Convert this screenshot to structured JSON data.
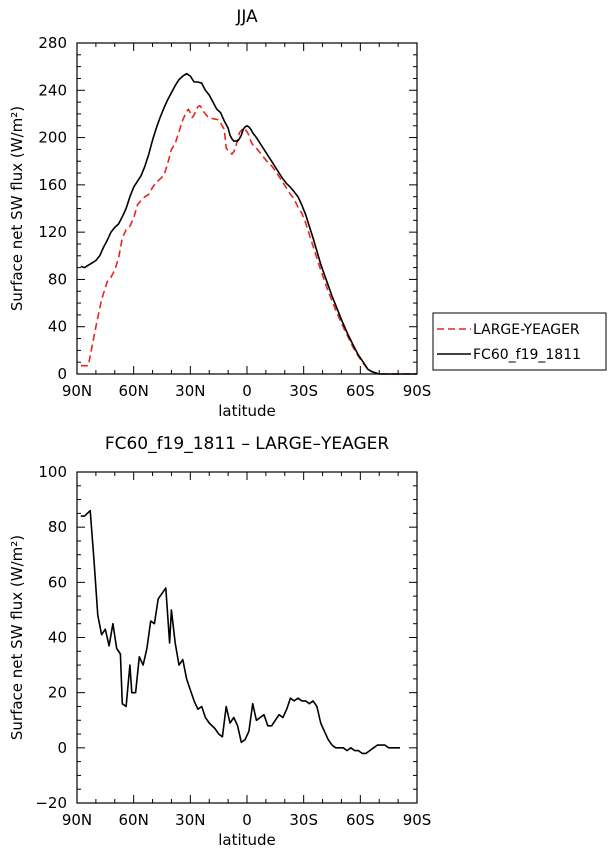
{
  "chart_data": [
    {
      "type": "line",
      "title": "JJA",
      "xlabel": "latitude",
      "ylabel": "Surface net SW flux (W/m²)",
      "xlim": [
        90,
        -90
      ],
      "ylim": [
        0,
        280
      ],
      "xticks": [
        90,
        60,
        30,
        0,
        -30,
        -60,
        -90
      ],
      "xtick_labels": [
        "90N",
        "60N",
        "30N",
        "0",
        "30S",
        "60S",
        "90S"
      ],
      "yticks": [
        0,
        40,
        80,
        120,
        160,
        200,
        240,
        280
      ],
      "grid": false,
      "legend_position": "outside-right",
      "series": [
        {
          "name": "LARGE-YEAGER",
          "color": "#e8251f",
          "dash": "dashed",
          "points": [
            [
              88,
              7
            ],
            [
              84,
              7
            ],
            [
              80,
              40
            ],
            [
              77,
              63
            ],
            [
              74,
              78
            ],
            [
              72,
              82
            ],
            [
              70,
              88
            ],
            [
              68,
              98
            ],
            [
              66,
              115
            ],
            [
              64,
              122
            ],
            [
              62,
              125
            ],
            [
              60,
              132
            ],
            [
              58,
              143
            ],
            [
              56,
              147
            ],
            [
              54,
              150
            ],
            [
              52,
              152
            ],
            [
              50,
              158
            ],
            [
              48,
              162
            ],
            [
              46,
              165
            ],
            [
              44,
              168
            ],
            [
              42,
              178
            ],
            [
              40,
              190
            ],
            [
              38,
              195
            ],
            [
              36,
              205
            ],
            [
              34,
              215
            ],
            [
              32,
              222
            ],
            [
              31,
              224
            ],
            [
              30,
              221
            ],
            [
              29,
              217
            ],
            [
              28,
              219
            ],
            [
              27,
              223
            ],
            [
              26,
              226
            ],
            [
              25,
              227
            ],
            [
              24,
              225
            ],
            [
              23,
              222
            ],
            [
              22,
              220
            ],
            [
              21,
              218
            ],
            [
              20,
              217
            ],
            [
              18,
              216
            ],
            [
              15,
              215
            ],
            [
              12,
              207
            ],
            [
              11,
              191
            ],
            [
              10,
              189
            ],
            [
              9,
              188
            ],
            [
              8,
              186
            ],
            [
              7,
              188
            ],
            [
              6,
              192
            ],
            [
              5,
              198
            ],
            [
              4,
              204
            ],
            [
              3,
              206
            ],
            [
              2,
              208
            ],
            [
              1,
              207
            ],
            [
              0,
              205
            ],
            [
              -1,
              202
            ],
            [
              -2,
              197
            ],
            [
              -3,
              194
            ],
            [
              -5,
              191
            ],
            [
              -7,
              187
            ],
            [
              -9,
              183
            ],
            [
              -11,
              179
            ],
            [
              -13,
              176
            ],
            [
              -15,
              172
            ],
            [
              -17,
              167
            ],
            [
              -19,
              162
            ],
            [
              -21,
              157
            ],
            [
              -23,
              152
            ],
            [
              -25,
              148
            ],
            [
              -27,
              141
            ],
            [
              -29,
              136
            ],
            [
              -31,
              128
            ],
            [
              -33,
              118
            ],
            [
              -35,
              108
            ],
            [
              -37,
              98
            ],
            [
              -39,
              88
            ],
            [
              -41,
              79
            ],
            [
              -43,
              70
            ],
            [
              -45,
              62
            ],
            [
              -47,
              54
            ],
            [
              -50,
              43
            ],
            [
              -53,
              33
            ],
            [
              -56,
              23
            ],
            [
              -59,
              15
            ],
            [
              -62,
              8
            ],
            [
              -64,
              4
            ],
            [
              -66,
              2
            ],
            [
              -68,
              1
            ],
            [
              -70,
              0
            ],
            [
              -75,
              0
            ],
            [
              -85,
              0
            ],
            [
              -90,
              0
            ]
          ]
        },
        {
          "name": "FC60_f19_1811",
          "color": "#000000",
          "dash": "solid",
          "points": [
            [
              88,
              91
            ],
            [
              86,
              90
            ],
            [
              84,
              92
            ],
            [
              82,
              94
            ],
            [
              80,
              96
            ],
            [
              78,
              100
            ],
            [
              76,
              107
            ],
            [
              74,
              113
            ],
            [
              72,
              120
            ],
            [
              70,
              124
            ],
            [
              68,
              127
            ],
            [
              66,
              133
            ],
            [
              64,
              140
            ],
            [
              62,
              150
            ],
            [
              60,
              158
            ],
            [
              58,
              163
            ],
            [
              56,
              168
            ],
            [
              54,
              176
            ],
            [
              52,
              186
            ],
            [
              50,
              198
            ],
            [
              48,
              208
            ],
            [
              46,
              217
            ],
            [
              44,
              225
            ],
            [
              42,
              232
            ],
            [
              40,
              238
            ],
            [
              38,
              244
            ],
            [
              36,
              249
            ],
            [
              34,
              252
            ],
            [
              32,
              254
            ],
            [
              30,
              252
            ],
            [
              28,
              247
            ],
            [
              26,
              247
            ],
            [
              24,
              246
            ],
            [
              22,
              240
            ],
            [
              20,
              236
            ],
            [
              18,
              230
            ],
            [
              16,
              224
            ],
            [
              14,
              221
            ],
            [
              12,
              214
            ],
            [
              10,
              208
            ],
            [
              9,
              202
            ],
            [
              8,
              199
            ],
            [
              7,
              197
            ],
            [
              6,
              197
            ],
            [
              5,
              197
            ],
            [
              4,
              199
            ],
            [
              3,
              202
            ],
            [
              2,
              207
            ],
            [
              1,
              209
            ],
            [
              0,
              210
            ],
            [
              -1,
              209
            ],
            [
              -2,
              207
            ],
            [
              -3,
              204
            ],
            [
              -5,
              200
            ],
            [
              -7,
              195
            ],
            [
              -9,
              190
            ],
            [
              -11,
              185
            ],
            [
              -13,
              180
            ],
            [
              -15,
              175
            ],
            [
              -17,
              170
            ],
            [
              -19,
              165
            ],
            [
              -21,
              161
            ],
            [
              -23,
              158
            ],
            [
              -25,
              154
            ],
            [
              -27,
              150
            ],
            [
              -29,
              143
            ],
            [
              -31,
              135
            ],
            [
              -33,
              125
            ],
            [
              -35,
              115
            ],
            [
              -37,
              104
            ],
            [
              -39,
              93
            ],
            [
              -41,
              84
            ],
            [
              -43,
              75
            ],
            [
              -45,
              66
            ],
            [
              -47,
              58
            ],
            [
              -50,
              46
            ],
            [
              -53,
              35
            ],
            [
              -56,
              25
            ],
            [
              -59,
              16
            ],
            [
              -62,
              9
            ],
            [
              -64,
              4
            ],
            [
              -66,
              2
            ],
            [
              -68,
              1
            ],
            [
              -70,
              0
            ],
            [
              -75,
              0
            ],
            [
              -85,
              0
            ],
            [
              -90,
              0
            ]
          ]
        }
      ]
    },
    {
      "type": "line",
      "title": "FC60_f19_1811 – LARGE–YEAGER",
      "xlabel": "latitude",
      "ylabel": "Surface net SW flux (W/m²)",
      "xlim": [
        90,
        -90
      ],
      "ylim": [
        -20,
        100
      ],
      "xticks": [
        90,
        60,
        30,
        0,
        -30,
        -60,
        -90
      ],
      "xtick_labels": [
        "90N",
        "60N",
        "30N",
        "0",
        "30S",
        "60S",
        "90S"
      ],
      "yticks": [
        -20,
        0,
        20,
        40,
        60,
        80,
        100
      ],
      "ytick_labels": [
        "−20",
        "0",
        "20",
        "40",
        "60",
        "80",
        "100"
      ],
      "grid": false,
      "series": [
        {
          "color": "#000000",
          "dash": "solid",
          "points": [
            [
              88,
              84
            ],
            [
              86,
              84
            ],
            [
              83,
              86
            ],
            [
              81,
              68
            ],
            [
              79,
              48
            ],
            [
              77,
              41
            ],
            [
              75,
              43
            ],
            [
              73,
              37
            ],
            [
              71,
              45
            ],
            [
              69,
              36
            ],
            [
              67,
              34
            ],
            [
              66,
              16
            ],
            [
              64,
              15
            ],
            [
              62,
              30
            ],
            [
              61,
              20
            ],
            [
              59,
              20
            ],
            [
              57,
              33
            ],
            [
              55,
              30
            ],
            [
              53,
              36
            ],
            [
              51,
              46
            ],
            [
              49,
              45
            ],
            [
              47,
              54
            ],
            [
              45,
              56
            ],
            [
              43,
              58
            ],
            [
              41,
              38
            ],
            [
              40,
              50
            ],
            [
              38,
              38
            ],
            [
              36,
              30
            ],
            [
              34,
              32
            ],
            [
              32,
              25
            ],
            [
              30,
              21
            ],
            [
              28,
              17
            ],
            [
              26,
              14
            ],
            [
              24,
              15
            ],
            [
              22,
              11
            ],
            [
              20,
              9
            ],
            [
              17,
              7
            ],
            [
              15,
              5
            ],
            [
              13,
              4
            ],
            [
              11,
              15
            ],
            [
              9,
              9
            ],
            [
              7,
              11
            ],
            [
              5,
              8
            ],
            [
              3,
              2
            ],
            [
              1,
              3
            ],
            [
              -1,
              6
            ],
            [
              -3,
              16
            ],
            [
              -5,
              10
            ],
            [
              -7,
              11
            ],
            [
              -9,
              12
            ],
            [
              -11,
              8
            ],
            [
              -13,
              8
            ],
            [
              -15,
              10
            ],
            [
              -17,
              12
            ],
            [
              -19,
              11
            ],
            [
              -21,
              14
            ],
            [
              -23,
              18
            ],
            [
              -25,
              17
            ],
            [
              -27,
              18
            ],
            [
              -29,
              17
            ],
            [
              -31,
              17
            ],
            [
              -33,
              16
            ],
            [
              -35,
              17
            ],
            [
              -37,
              15
            ],
            [
              -39,
              9
            ],
            [
              -41,
              6
            ],
            [
              -43,
              3
            ],
            [
              -45,
              1
            ],
            [
              -47,
              0
            ],
            [
              -49,
              0
            ],
            [
              -51,
              0
            ],
            [
              -53,
              -1
            ],
            [
              -55,
              0
            ],
            [
              -57,
              -1
            ],
            [
              -59,
              -1
            ],
            [
              -61,
              -2
            ],
            [
              -63,
              -2
            ],
            [
              -65,
              -1
            ],
            [
              -67,
              0
            ],
            [
              -69,
              1
            ],
            [
              -71,
              1
            ],
            [
              -73,
              1
            ],
            [
              -75,
              0
            ],
            [
              -77,
              0
            ],
            [
              -79,
              0
            ],
            [
              -81,
              0
            ]
          ]
        }
      ]
    }
  ]
}
